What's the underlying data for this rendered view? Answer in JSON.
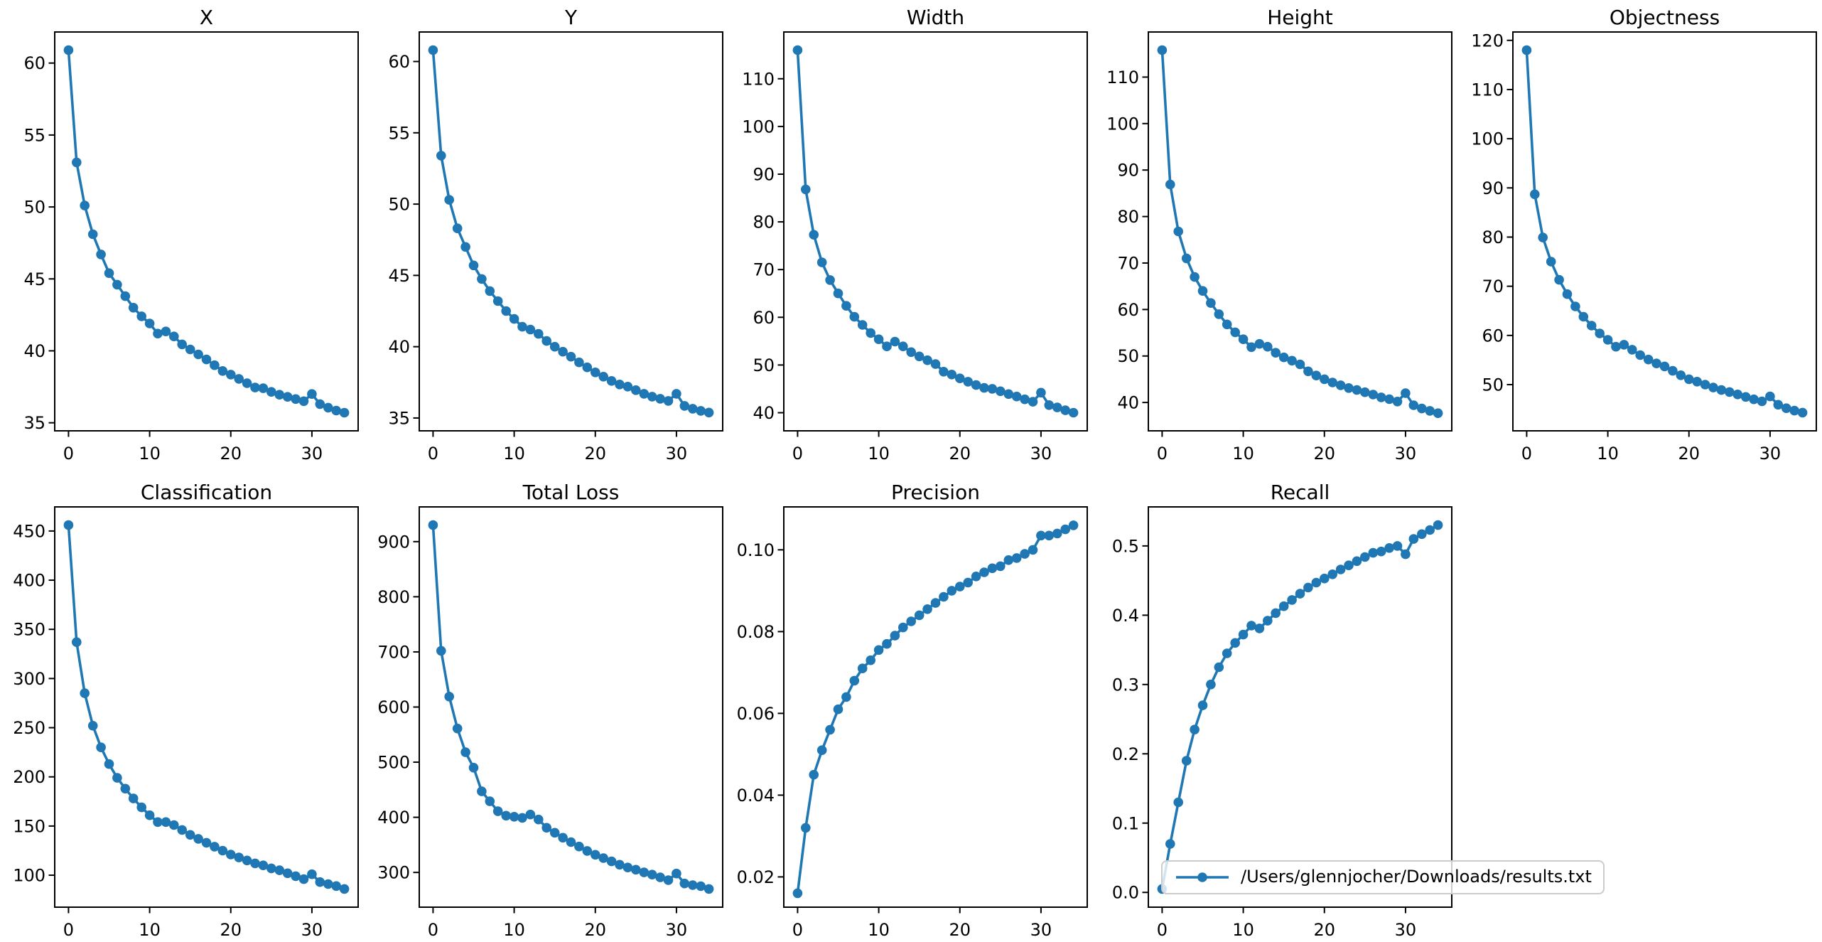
{
  "figure": {
    "background": "#ffffff",
    "spine_color": "#000000",
    "text_color": "#000000",
    "legend": {
      "label": "/Users/glennjocher/Downloads/results.txt",
      "border_color": "#cccccc"
    }
  },
  "chart_data": {
    "type": "line",
    "marker": "point",
    "line_color": "#1f77b4",
    "grid": false,
    "legend_entries": [
      "/Users/glennjocher/Downloads/results.txt"
    ],
    "legend_position": "lower right, overlapping Recall subplot",
    "x": [
      0,
      1,
      2,
      3,
      4,
      5,
      6,
      7,
      8,
      9,
      10,
      11,
      12,
      13,
      14,
      15,
      16,
      17,
      18,
      19,
      20,
      21,
      22,
      23,
      24,
      25,
      26,
      27,
      28,
      29,
      30,
      31,
      32,
      33,
      34
    ],
    "xticks": [
      0,
      10,
      20,
      30
    ],
    "xlim": [
      -1.7,
      35.7
    ],
    "subplots": [
      {
        "title": "X",
        "ylim": [
          34.44,
          62.16
        ],
        "ytick_vals": [
          35,
          40,
          45,
          50,
          55,
          60
        ],
        "ytick_labels": [
          "35",
          "40",
          "45",
          "50",
          "55",
          "60"
        ],
        "values": [
          60.9,
          53.1,
          50.1,
          48.1,
          46.7,
          45.4,
          44.6,
          43.8,
          43.0,
          42.4,
          41.9,
          41.2,
          41.35,
          41.0,
          40.45,
          40.1,
          39.75,
          39.4,
          39.0,
          38.6,
          38.35,
          38.05,
          37.75,
          37.45,
          37.4,
          37.15,
          36.95,
          36.8,
          36.65,
          36.5,
          37.0,
          36.3,
          36.05,
          35.85,
          35.7
        ]
      },
      {
        "title": "Y",
        "ylim": [
          34.1,
          62.07
        ],
        "ytick_vals": [
          35,
          40,
          45,
          50,
          55,
          60
        ],
        "ytick_labels": [
          "35",
          "40",
          "45",
          "50",
          "55",
          "60"
        ],
        "values": [
          60.8,
          53.4,
          50.3,
          48.3,
          47.0,
          45.7,
          44.75,
          43.9,
          43.2,
          42.5,
          41.95,
          41.4,
          41.2,
          40.9,
          40.4,
          40.0,
          39.65,
          39.3,
          38.9,
          38.55,
          38.2,
          37.9,
          37.6,
          37.35,
          37.2,
          36.95,
          36.7,
          36.5,
          36.35,
          36.2,
          36.7,
          35.85,
          35.65,
          35.5,
          35.38
        ]
      },
      {
        "title": "Width",
        "ylim": [
          36.2,
          119.8
        ],
        "ytick_vals": [
          40,
          50,
          60,
          70,
          80,
          90,
          100,
          110
        ],
        "ytick_labels": [
          "40",
          "50",
          "60",
          "70",
          "80",
          "90",
          "100",
          "110"
        ],
        "values": [
          116.0,
          86.8,
          77.3,
          71.5,
          67.8,
          65.0,
          62.4,
          60.1,
          58.4,
          56.7,
          55.4,
          53.9,
          54.9,
          53.9,
          52.7,
          51.8,
          51.0,
          50.2,
          48.6,
          48.0,
          47.2,
          46.5,
          45.8,
          45.2,
          45.0,
          44.5,
          43.9,
          43.4,
          42.8,
          42.3,
          44.2,
          41.6,
          41.1,
          40.5,
          40.0
        ]
      },
      {
        "title": "Height",
        "ylim": [
          33.9,
          119.7
        ],
        "ytick_vals": [
          40,
          50,
          60,
          70,
          80,
          90,
          100,
          110
        ],
        "ytick_labels": [
          "40",
          "50",
          "60",
          "70",
          "80",
          "90",
          "100",
          "110"
        ],
        "values": [
          115.8,
          86.9,
          76.8,
          71.0,
          67.0,
          64.0,
          61.4,
          59.0,
          56.8,
          55.1,
          53.6,
          51.9,
          52.6,
          52.0,
          50.7,
          49.7,
          49.0,
          48.2,
          46.7,
          45.8,
          45.0,
          44.3,
          43.7,
          43.1,
          42.7,
          42.2,
          41.7,
          41.1,
          40.7,
          40.2,
          42.0,
          39.4,
          38.7,
          38.2,
          37.7
        ]
      },
      {
        "title": "Objectness",
        "ylim": [
          40.6,
          121.7
        ],
        "ytick_vals": [
          50,
          60,
          70,
          80,
          90,
          100,
          110,
          120
        ],
        "ytick_labels": [
          "50",
          "60",
          "70",
          "80",
          "90",
          "100",
          "110",
          "120"
        ],
        "values": [
          118.0,
          88.7,
          79.9,
          75.0,
          71.3,
          68.4,
          65.9,
          63.8,
          62.0,
          60.4,
          59.1,
          57.7,
          58.1,
          57.1,
          56.0,
          55.1,
          54.3,
          53.7,
          52.8,
          51.9,
          51.1,
          50.6,
          50.0,
          49.4,
          48.9,
          48.5,
          48.0,
          47.5,
          47.0,
          46.6,
          47.6,
          45.9,
          45.2,
          44.7,
          44.3
        ]
      },
      {
        "title": "Classification",
        "ylim": [
          67.5,
          474.5
        ],
        "ytick_vals": [
          100,
          150,
          200,
          250,
          300,
          350,
          400,
          450
        ],
        "ytick_labels": [
          "100",
          "150",
          "200",
          "250",
          "300",
          "350",
          "400",
          "450"
        ],
        "values": [
          456,
          337,
          285,
          252,
          230,
          213,
          199,
          188,
          178,
          169,
          161,
          154,
          154,
          151,
          146,
          141,
          137,
          133,
          129,
          125,
          121,
          118,
          115,
          112,
          110,
          107,
          105,
          102,
          99,
          96,
          101,
          93,
          91,
          89,
          86
        ]
      },
      {
        "title": "Total Loss",
        "ylim": [
          237,
          963
        ],
        "ytick_vals": [
          300,
          400,
          500,
          600,
          700,
          800,
          900
        ],
        "ytick_labels": [
          "300",
          "400",
          "500",
          "600",
          "700",
          "800",
          "900"
        ],
        "values": [
          930,
          702,
          619,
          561,
          518,
          490,
          447,
          429,
          411,
          403,
          401,
          399,
          405,
          396,
          381,
          372,
          363,
          355,
          347,
          339,
          332,
          326,
          320,
          314,
          309,
          305,
          300,
          296,
          291,
          286,
          298,
          280,
          277,
          275,
          270
        ]
      },
      {
        "title": "Precision",
        "ylim": [
          0.0126,
          0.1105
        ],
        "ytick_vals": [
          0.02,
          0.04,
          0.06,
          0.08,
          0.1
        ],
        "ytick_labels": [
          "0.02",
          "0.04",
          "0.06",
          "0.08",
          "0.10"
        ],
        "values": [
          0.016,
          0.032,
          0.045,
          0.051,
          0.056,
          0.061,
          0.064,
          0.068,
          0.071,
          0.073,
          0.0755,
          0.077,
          0.079,
          0.081,
          0.0825,
          0.084,
          0.0855,
          0.087,
          0.0885,
          0.09,
          0.091,
          0.092,
          0.0935,
          0.0945,
          0.0955,
          0.096,
          0.0975,
          0.098,
          0.099,
          0.1,
          0.1035,
          0.1035,
          0.104,
          0.105,
          0.106
        ]
      },
      {
        "title": "Recall",
        "ylim": [
          -0.0213,
          0.5563
        ],
        "ytick_vals": [
          0.0,
          0.1,
          0.2,
          0.3,
          0.4,
          0.5
        ],
        "ytick_labels": [
          "0.0",
          "0.1",
          "0.2",
          "0.3",
          "0.4",
          "0.5"
        ],
        "values": [
          0.005,
          0.07,
          0.13,
          0.19,
          0.235,
          0.27,
          0.3,
          0.325,
          0.345,
          0.36,
          0.372,
          0.385,
          0.381,
          0.392,
          0.403,
          0.413,
          0.422,
          0.431,
          0.44,
          0.447,
          0.453,
          0.459,
          0.466,
          0.472,
          0.478,
          0.484,
          0.49,
          0.492,
          0.497,
          0.5,
          0.488,
          0.51,
          0.517,
          0.523,
          0.53
        ]
      }
    ]
  }
}
